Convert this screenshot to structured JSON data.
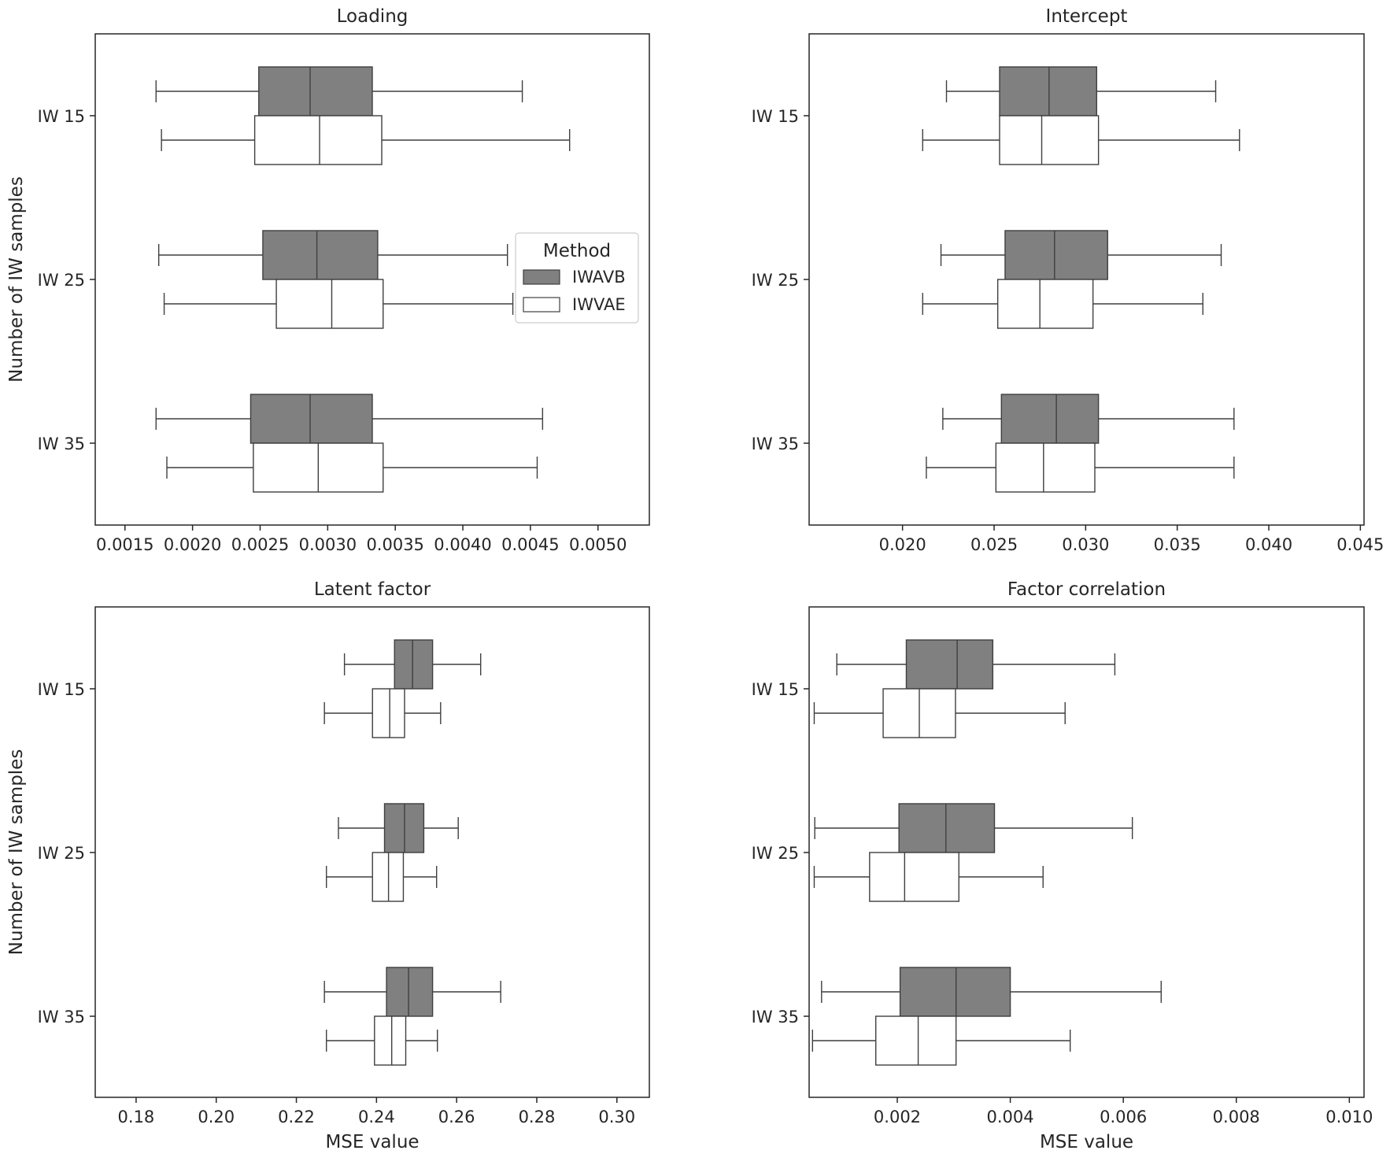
{
  "chart_data": [
    {
      "type": "boxplot",
      "orientation": "horizontal",
      "title": "Loading",
      "xlabel": "",
      "ylabel": "Number of IW samples",
      "xlim": [
        0.00128,
        0.00538
      ],
      "xticks": [
        0.0015,
        0.002,
        0.0025,
        0.003,
        0.0035,
        0.004,
        0.0045,
        0.005
      ],
      "xtick_labels": [
        "0.0015",
        "0.0020",
        "0.0025",
        "0.0030",
        "0.0035",
        "0.0040",
        "0.0045",
        "0.0050"
      ],
      "categories": [
        "IW 15",
        "IW 25",
        "IW 35"
      ],
      "legend": {
        "title": "Method",
        "entries": [
          "IWAVB",
          "IWVAE"
        ],
        "placement": "center-right"
      },
      "series": [
        {
          "name": "IWAVB",
          "color": "#808080",
          "boxes": [
            {
              "whislo": 0.00173,
              "q1": 0.00249,
              "med": 0.00287,
              "q3": 0.00333,
              "whishi": 0.00444
            },
            {
              "whislo": 0.00175,
              "q1": 0.00252,
              "med": 0.00292,
              "q3": 0.00337,
              "whishi": 0.00433
            },
            {
              "whislo": 0.00173,
              "q1": 0.00243,
              "med": 0.00287,
              "q3": 0.00333,
              "whishi": 0.00459
            }
          ]
        },
        {
          "name": "IWVAE",
          "color": "#ffffff",
          "boxes": [
            {
              "whislo": 0.00177,
              "q1": 0.00246,
              "med": 0.00294,
              "q3": 0.0034,
              "whishi": 0.00479
            },
            {
              "whislo": 0.00179,
              "q1": 0.00262,
              "med": 0.00303,
              "q3": 0.00341,
              "whishi": 0.00437
            },
            {
              "whislo": 0.00181,
              "q1": 0.00245,
              "med": 0.00293,
              "q3": 0.00341,
              "whishi": 0.00455
            }
          ]
        }
      ]
    },
    {
      "type": "boxplot",
      "orientation": "horizontal",
      "title": "Intercept",
      "xlabel": "",
      "ylabel": "",
      "xlim": [
        0.0149,
        0.0452
      ],
      "xticks": [
        0.02,
        0.025,
        0.03,
        0.035,
        0.04,
        0.045
      ],
      "xtick_labels": [
        "0.020",
        "0.025",
        "0.030",
        "0.035",
        "0.040",
        "0.045"
      ],
      "categories": [
        "IW 15",
        "IW 25",
        "IW 35"
      ],
      "series": [
        {
          "name": "IWAVB",
          "color": "#808080",
          "boxes": [
            {
              "whislo": 0.0224,
              "q1": 0.0253,
              "med": 0.028,
              "q3": 0.0306,
              "whishi": 0.0371
            },
            {
              "whislo": 0.0221,
              "q1": 0.0256,
              "med": 0.0283,
              "q3": 0.0312,
              "whishi": 0.0374
            },
            {
              "whislo": 0.0222,
              "q1": 0.0254,
              "med": 0.0284,
              "q3": 0.0307,
              "whishi": 0.0381
            }
          ]
        },
        {
          "name": "IWVAE",
          "color": "#ffffff",
          "boxes": [
            {
              "whislo": 0.0211,
              "q1": 0.0253,
              "med": 0.0276,
              "q3": 0.0307,
              "whishi": 0.0384
            },
            {
              "whislo": 0.0211,
              "q1": 0.0252,
              "med": 0.0275,
              "q3": 0.0304,
              "whishi": 0.0364
            },
            {
              "whislo": 0.0213,
              "q1": 0.0251,
              "med": 0.0277,
              "q3": 0.0305,
              "whishi": 0.0381
            }
          ]
        }
      ]
    },
    {
      "type": "boxplot",
      "orientation": "horizontal",
      "title": "Latent factor",
      "xlabel": "MSE value",
      "ylabel": "Number of IW samples",
      "xlim": [
        0.1698,
        0.3081
      ],
      "xticks": [
        0.18,
        0.2,
        0.22,
        0.24,
        0.26,
        0.28,
        0.3
      ],
      "xtick_labels": [
        "0.18",
        "0.20",
        "0.22",
        "0.24",
        "0.26",
        "0.28",
        "0.30"
      ],
      "categories": [
        "IW 15",
        "IW 25",
        "IW 35"
      ],
      "series": [
        {
          "name": "IWAVB",
          "color": "#808080",
          "boxes": [
            {
              "whislo": 0.232,
              "q1": 0.2445,
              "med": 0.249,
              "q3": 0.254,
              "whishi": 0.266
            },
            {
              "whislo": 0.2305,
              "q1": 0.242,
              "med": 0.247,
              "q3": 0.2518,
              "whishi": 0.2604
            },
            {
              "whislo": 0.227,
              "q1": 0.2425,
              "med": 0.248,
              "q3": 0.254,
              "whishi": 0.271
            }
          ]
        },
        {
          "name": "IWVAE",
          "color": "#ffffff",
          "boxes": [
            {
              "whislo": 0.227,
              "q1": 0.239,
              "med": 0.2433,
              "q3": 0.247,
              "whishi": 0.256
            },
            {
              "whislo": 0.2275,
              "q1": 0.239,
              "med": 0.243,
              "q3": 0.2467,
              "whishi": 0.255
            },
            {
              "whislo": 0.2275,
              "q1": 0.2395,
              "med": 0.2438,
              "q3": 0.2473,
              "whishi": 0.2552
            }
          ]
        }
      ]
    },
    {
      "type": "boxplot",
      "orientation": "horizontal",
      "title": "Factor correlation",
      "xlabel": "MSE value",
      "ylabel": "",
      "xlim": [
        0.00044,
        0.01026
      ],
      "xticks": [
        0.002,
        0.004,
        0.006,
        0.008,
        0.01
      ],
      "xtick_labels": [
        "0.002",
        "0.004",
        "0.006",
        "0.008",
        "0.010"
      ],
      "categories": [
        "IW 15",
        "IW 25",
        "IW 35"
      ],
      "series": [
        {
          "name": "IWAVB",
          "color": "#808080",
          "boxes": [
            {
              "whislo": 0.00093,
              "q1": 0.00216,
              "med": 0.00306,
              "q3": 0.00369,
              "whishi": 0.00585
            },
            {
              "whislo": 0.00054,
              "q1": 0.00203,
              "med": 0.00286,
              "q3": 0.00372,
              "whishi": 0.00616
            },
            {
              "whislo": 0.00066,
              "q1": 0.00205,
              "med": 0.00304,
              "q3": 0.004,
              "whishi": 0.00667
            }
          ]
        },
        {
          "name": "IWVAE",
          "color": "#ffffff",
          "boxes": [
            {
              "whislo": 0.00053,
              "q1": 0.00175,
              "med": 0.00239,
              "q3": 0.00303,
              "whishi": 0.00497
            },
            {
              "whislo": 0.00053,
              "q1": 0.00151,
              "med": 0.00213,
              "q3": 0.00309,
              "whishi": 0.00458
            },
            {
              "whislo": 0.0005,
              "q1": 0.00162,
              "med": 0.00237,
              "q3": 0.00304,
              "whishi": 0.00506
            }
          ]
        }
      ]
    }
  ]
}
